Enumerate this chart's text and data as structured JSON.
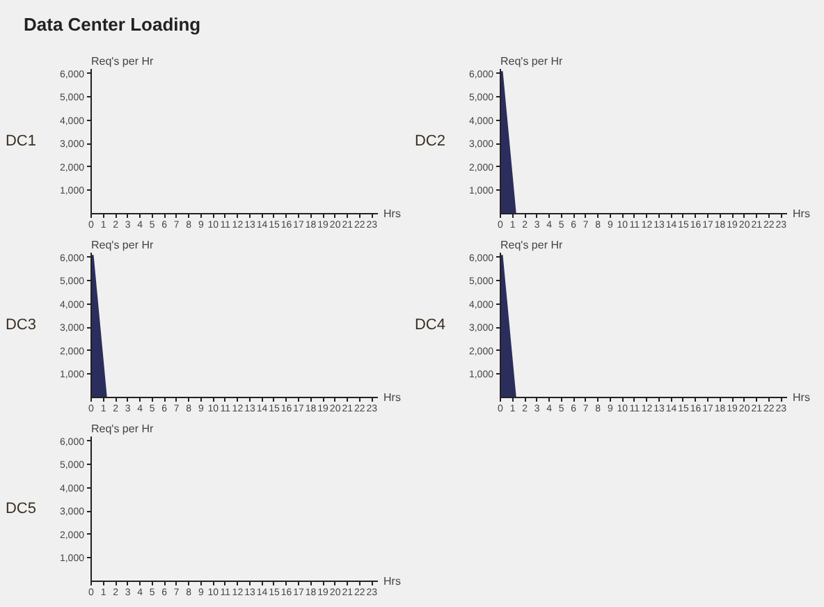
{
  "chart_data": [
    {
      "type": "other",
      "title": "Data Center Loading"
    },
    {
      "type": "area",
      "title": "DC1",
      "ylabel": "Req's per Hr",
      "xlabel": "Hrs",
      "xlim": [
        0,
        23.5
      ],
      "ylim": [
        0,
        6200
      ],
      "xticks": [
        0,
        1,
        2,
        3,
        4,
        5,
        6,
        7,
        8,
        9,
        10,
        11,
        12,
        13,
        14,
        15,
        16,
        17,
        18,
        19,
        20,
        21,
        22,
        23
      ],
      "yticks": [
        {
          "value": 1000,
          "label": "1,000"
        },
        {
          "value": 2000,
          "label": "2,000"
        },
        {
          "value": 3000,
          "label": "3,000"
        },
        {
          "value": 4000,
          "label": "4,000"
        },
        {
          "value": 5000,
          "label": "5,000"
        },
        {
          "value": 6000,
          "label": "6,000"
        }
      ],
      "grid": false
    },
    {
      "type": "area",
      "title": "DC2",
      "ylabel": "Req's per Hr",
      "xlabel": "Hrs",
      "xlim": [
        0,
        23.5
      ],
      "ylim": [
        0,
        6200
      ],
      "xticks": [
        0,
        1,
        2,
        3,
        4,
        5,
        6,
        7,
        8,
        9,
        10,
        11,
        12,
        13,
        14,
        15,
        16,
        17,
        18,
        19,
        20,
        21,
        22,
        23
      ],
      "yticks": [
        {
          "value": 1000,
          "label": "1,000"
        },
        {
          "value": 2000,
          "label": "2,000"
        },
        {
          "value": 3000,
          "label": "3,000"
        },
        {
          "value": 4000,
          "label": "4,000"
        },
        {
          "value": 5000,
          "label": "5,000"
        },
        {
          "value": 6000,
          "label": "6,000"
        }
      ],
      "grid": false,
      "series": [
        {
          "color": "#2b2d5c",
          "x": [
            0,
            0.2,
            1.3
          ],
          "values": [
            6100,
            6100,
            0
          ]
        }
      ]
    },
    {
      "type": "area",
      "title": "DC3",
      "ylabel": "Req's per Hr",
      "xlabel": "Hrs",
      "xlim": [
        0,
        23.5
      ],
      "ylim": [
        0,
        6200
      ],
      "xticks": [
        0,
        1,
        2,
        3,
        4,
        5,
        6,
        7,
        8,
        9,
        10,
        11,
        12,
        13,
        14,
        15,
        16,
        17,
        18,
        19,
        20,
        21,
        22,
        23
      ],
      "yticks": [
        {
          "value": 1000,
          "label": "1,000"
        },
        {
          "value": 2000,
          "label": "2,000"
        },
        {
          "value": 3000,
          "label": "3,000"
        },
        {
          "value": 4000,
          "label": "4,000"
        },
        {
          "value": 5000,
          "label": "5,000"
        },
        {
          "value": 6000,
          "label": "6,000"
        }
      ],
      "grid": false,
      "series": [
        {
          "color": "#2b2d5c",
          "x": [
            0,
            0.2,
            1.3
          ],
          "values": [
            6100,
            6100,
            0
          ]
        }
      ]
    },
    {
      "type": "area",
      "title": "DC4",
      "ylabel": "Req's per Hr",
      "xlabel": "Hrs",
      "xlim": [
        0,
        23.5
      ],
      "ylim": [
        0,
        6200
      ],
      "xticks": [
        0,
        1,
        2,
        3,
        4,
        5,
        6,
        7,
        8,
        9,
        10,
        11,
        12,
        13,
        14,
        15,
        16,
        17,
        18,
        19,
        20,
        21,
        22,
        23
      ],
      "yticks": [
        {
          "value": 1000,
          "label": "1,000"
        },
        {
          "value": 2000,
          "label": "2,000"
        },
        {
          "value": 3000,
          "label": "3,000"
        },
        {
          "value": 4000,
          "label": "4,000"
        },
        {
          "value": 5000,
          "label": "5,000"
        },
        {
          "value": 6000,
          "label": "6,000"
        }
      ],
      "grid": false,
      "series": [
        {
          "color": "#2b2d5c",
          "x": [
            0,
            0.2,
            1.3
          ],
          "values": [
            6100,
            6100,
            0
          ]
        }
      ]
    },
    {
      "type": "area",
      "title": "DC5",
      "ylabel": "Req's per Hr",
      "xlabel": "Hrs",
      "xlim": [
        0,
        23.5
      ],
      "ylim": [
        0,
        6200
      ],
      "xticks": [
        0,
        1,
        2,
        3,
        4,
        5,
        6,
        7,
        8,
        9,
        10,
        11,
        12,
        13,
        14,
        15,
        16,
        17,
        18,
        19,
        20,
        21,
        22,
        23
      ],
      "yticks": [
        {
          "value": 1000,
          "label": "1,000"
        },
        {
          "value": 2000,
          "label": "2,000"
        },
        {
          "value": 3000,
          "label": "3,000"
        },
        {
          "value": 4000,
          "label": "4,000"
        },
        {
          "value": 5000,
          "label": "5,000"
        },
        {
          "value": 6000,
          "label": "6,000"
        }
      ],
      "grid": false
    }
  ]
}
